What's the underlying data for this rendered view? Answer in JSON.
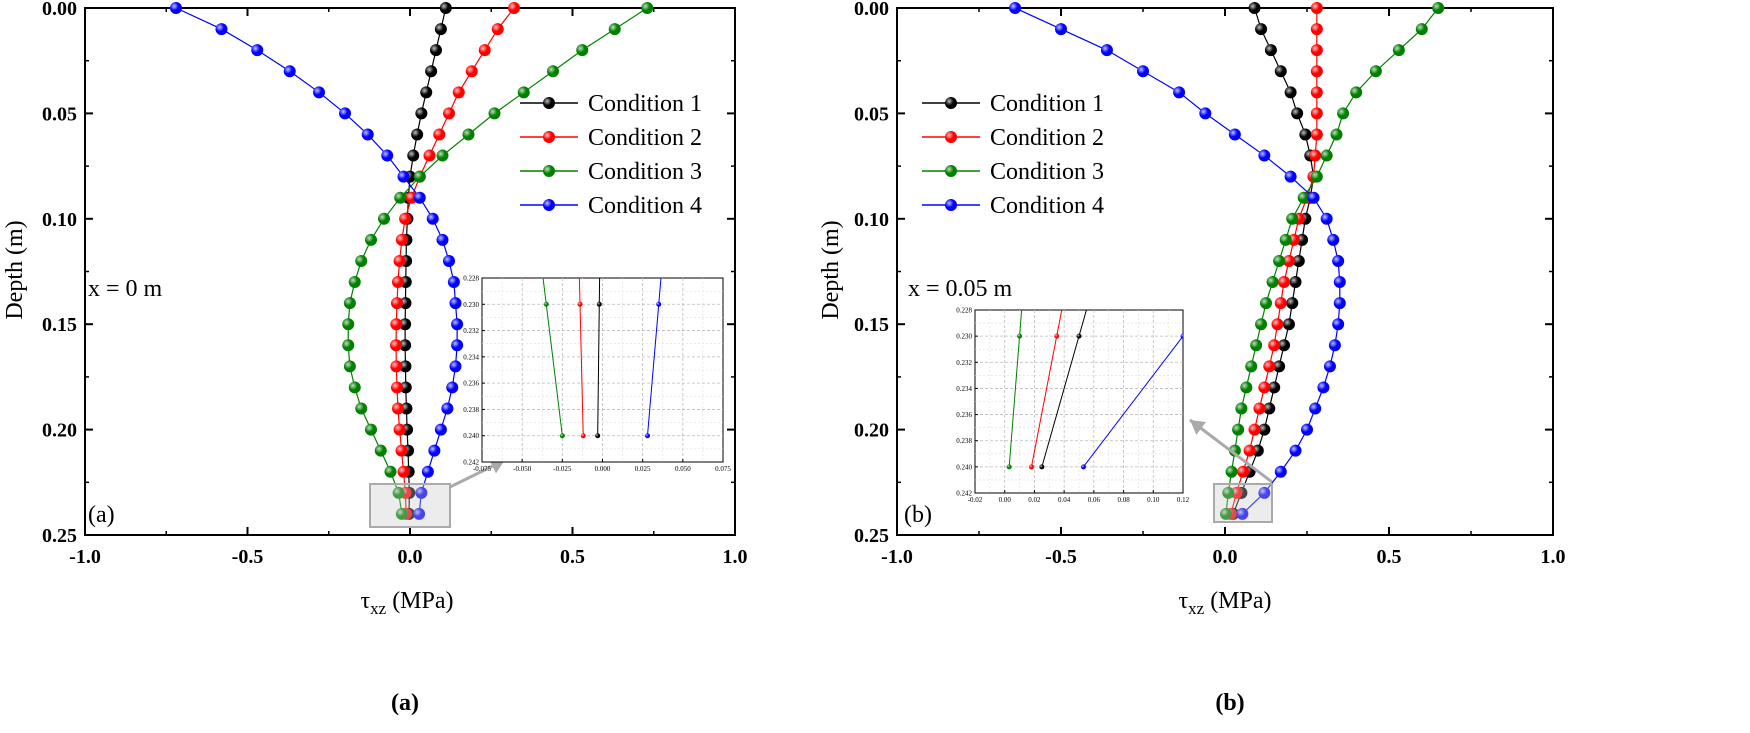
{
  "figure": {
    "series_colors": {
      "Condition 1": "#000000",
      "Condition 2": "#ff0000",
      "Condition 3": "#008000",
      "Condition 4": "#0000ff"
    },
    "inset_highlight_color": "#aaaaaa"
  },
  "chart_data": [
    {
      "type": "line",
      "panel_label": "(a)",
      "corner_label": "(a)",
      "annotation": "x = 0 m",
      "xlabel_main": "τ",
      "xlabel_sub": "xz",
      "xlabel_unit": " (MPa)",
      "ylabel": "Depth (m)",
      "xlim": [
        -1.0,
        1.0
      ],
      "ylim": [
        0.25,
        0.0
      ],
      "xticks": [
        "-1.0",
        "-0.5",
        "0.0",
        "0.5",
        "1.0"
      ],
      "yticks": [
        "0.00",
        "0.05",
        "0.10",
        "0.15",
        "0.20",
        "0.25"
      ],
      "legend_position": "top-right",
      "series": [
        {
          "name": "Condition 1",
          "x": [
            0.11,
            0.095,
            0.08,
            0.065,
            0.05,
            0.035,
            0.022,
            0.01,
            0,
            -0.005,
            -0.008,
            -0.011,
            -0.012,
            -0.013,
            -0.014,
            -0.015,
            -0.015,
            -0.014,
            -0.013,
            -0.011,
            -0.009,
            -0.006,
            -0.004,
            -0.002,
            -0.003
          ]
        },
        {
          "name": "Condition 2",
          "x": [
            0.32,
            0.27,
            0.23,
            0.19,
            0.15,
            0.12,
            0.09,
            0.06,
            0.03,
            0.005,
            -0.015,
            -0.025,
            -0.032,
            -0.037,
            -0.04,
            -0.042,
            -0.043,
            -0.042,
            -0.04,
            -0.037,
            -0.032,
            -0.026,
            -0.02,
            -0.014,
            -0.012
          ]
        },
        {
          "name": "Condition 3",
          "x": [
            0.73,
            0.63,
            0.53,
            0.44,
            0.35,
            0.26,
            0.18,
            0.1,
            0.03,
            -0.03,
            -0.08,
            -0.12,
            -0.15,
            -0.17,
            -0.185,
            -0.19,
            -0.19,
            -0.185,
            -0.17,
            -0.15,
            -0.12,
            -0.09,
            -0.06,
            -0.035,
            -0.025
          ]
        },
        {
          "name": "Condition 4",
          "x": [
            -0.72,
            -0.58,
            -0.47,
            -0.37,
            -0.28,
            -0.2,
            -0.13,
            -0.07,
            -0.02,
            0.03,
            0.07,
            0.1,
            0.12,
            0.135,
            0.14,
            0.145,
            0.145,
            0.14,
            0.13,
            0.115,
            0.095,
            0.075,
            0.055,
            0.035,
            0.028
          ]
        }
      ],
      "y": [
        0.0,
        0.01,
        0.02,
        0.03,
        0.04,
        0.05,
        0.06,
        0.07,
        0.08,
        0.09,
        0.1,
        0.11,
        0.12,
        0.13,
        0.14,
        0.15,
        0.16,
        0.17,
        0.18,
        0.19,
        0.2,
        0.21,
        0.22,
        0.23,
        0.24
      ],
      "inset": {
        "xlim": [
          -0.075,
          0.075
        ],
        "ylim": [
          0.242,
          0.228
        ],
        "xticks": [
          "-0.075",
          "-0.050",
          "-0.025",
          "0.000",
          "0.025",
          "0.050",
          "0.075"
        ],
        "yticks": [
          "0.228",
          "0.230",
          "0.232",
          "0.234",
          "0.236",
          "0.238",
          "0.240",
          "0.242"
        ],
        "grid": true
      }
    },
    {
      "type": "line",
      "panel_label": "(b)",
      "corner_label": "(b)",
      "annotation": "x = 0.05 m",
      "xlabel_main": "τ",
      "xlabel_sub": "xz",
      "xlabel_unit": " (MPa)",
      "ylabel": "Depth (m)",
      "xlim": [
        -1.0,
        1.0
      ],
      "ylim": [
        0.25,
        0.0
      ],
      "xticks": [
        "-1.0",
        "-0.5",
        "0.0",
        "0.5",
        "1.0"
      ],
      "yticks": [
        "0.00",
        "0.05",
        "0.10",
        "0.15",
        "0.20",
        "0.25"
      ],
      "legend_position": "top-left",
      "series": [
        {
          "name": "Condition 1",
          "x": [
            0.09,
            0.11,
            0.14,
            0.17,
            0.2,
            0.22,
            0.245,
            0.26,
            0.27,
            0.26,
            0.245,
            0.235,
            0.225,
            0.215,
            0.205,
            0.195,
            0.18,
            0.165,
            0.15,
            0.135,
            0.12,
            0.1,
            0.075,
            0.05,
            0.025
          ]
        },
        {
          "name": "Condition 2",
          "x": [
            0.28,
            0.28,
            0.28,
            0.28,
            0.28,
            0.28,
            0.28,
            0.275,
            0.27,
            0.25,
            0.225,
            0.21,
            0.195,
            0.18,
            0.17,
            0.16,
            0.15,
            0.135,
            0.12,
            0.105,
            0.09,
            0.075,
            0.055,
            0.035,
            0.018
          ]
        },
        {
          "name": "Condition 3",
          "x": [
            0.65,
            0.6,
            0.53,
            0.46,
            0.4,
            0.36,
            0.34,
            0.31,
            0.28,
            0.24,
            0.205,
            0.185,
            0.165,
            0.145,
            0.125,
            0.11,
            0.095,
            0.08,
            0.065,
            0.05,
            0.04,
            0.03,
            0.02,
            0.01,
            0.003
          ]
        },
        {
          "name": "Condition 4",
          "x": [
            -0.64,
            -0.5,
            -0.36,
            -0.25,
            -0.14,
            -0.06,
            0.03,
            0.12,
            0.2,
            0.27,
            0.31,
            0.33,
            0.345,
            0.35,
            0.35,
            0.345,
            0.335,
            0.32,
            0.3,
            0.275,
            0.25,
            0.215,
            0.17,
            0.12,
            0.053
          ]
        }
      ],
      "y": [
        0.0,
        0.01,
        0.02,
        0.03,
        0.04,
        0.05,
        0.06,
        0.07,
        0.08,
        0.09,
        0.1,
        0.11,
        0.12,
        0.13,
        0.14,
        0.15,
        0.16,
        0.17,
        0.18,
        0.19,
        0.2,
        0.21,
        0.22,
        0.23,
        0.24
      ],
      "inset": {
        "xlim": [
          -0.02,
          0.12
        ],
        "ylim": [
          0.242,
          0.228
        ],
        "xticks": [
          "-0.02",
          "0.00",
          "0.02",
          "0.04",
          "0.06",
          "0.08",
          "0.10",
          "0.12"
        ],
        "yticks": [
          "0.228",
          "0.230",
          "0.232",
          "0.234",
          "0.236",
          "0.238",
          "0.240",
          "0.242"
        ],
        "grid": true
      }
    }
  ]
}
